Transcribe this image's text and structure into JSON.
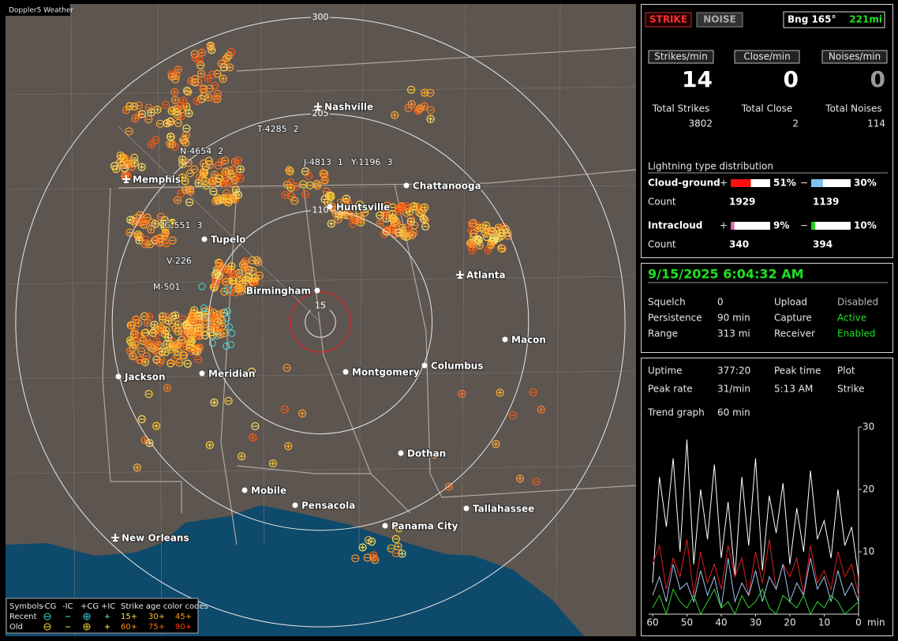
{
  "app_title": "Doppler5 Weather",
  "map": {
    "rings": [
      15,
      110,
      205,
      300
    ],
    "cities": [
      {
        "name": "Nashville",
        "airport": true
      },
      {
        "name": "Memphis",
        "airport": true
      },
      {
        "name": "Chattanooga",
        "airport": false
      },
      {
        "name": "Huntsville",
        "airport": false
      },
      {
        "name": "Tupelo",
        "airport": false
      },
      {
        "name": "Atlanta",
        "airport": true
      },
      {
        "name": "Birmingham",
        "airport": false
      },
      {
        "name": "Macon",
        "airport": false
      },
      {
        "name": "Jackson",
        "airport": false
      },
      {
        "name": "Meridian",
        "airport": false
      },
      {
        "name": "Montgomery",
        "airport": false
      },
      {
        "name": "Columbus",
        "airport": false
      },
      {
        "name": "Dothan",
        "airport": false
      },
      {
        "name": "Mobile",
        "airport": false
      },
      {
        "name": "Pensacola",
        "airport": false
      },
      {
        "name": "Tallahassee",
        "airport": false
      },
      {
        "name": "Panama City",
        "airport": false
      },
      {
        "name": "New Orleans",
        "airport": true
      }
    ],
    "storms": [
      {
        "id": "T-4285",
        "count": "2"
      },
      {
        "id": "N-4654",
        "count": "2"
      },
      {
        "id": "J-4813",
        "count": "1"
      },
      {
        "id": "Y-1196",
        "count": "3"
      },
      {
        "id": "G-551",
        "count": "3"
      },
      {
        "id": "V-226"
      },
      {
        "id": "M-501"
      }
    ]
  },
  "legend": {
    "symbols_label": "Symbols",
    "symbols": [
      "-CG",
      "-IC",
      "+CG",
      "+IC"
    ],
    "age_title": "Strike age color codes",
    "recent_label": "Recent",
    "old_label": "Old",
    "recent_ages": [
      "15+",
      "30+",
      "45+"
    ],
    "old_ages": [
      "60+",
      "75+",
      "90+"
    ]
  },
  "panel": {
    "strike_button": "STRIKE",
    "noise_button": "NOISE",
    "bearing": "Bng 165°",
    "distance": "221mi",
    "rates": [
      {
        "label": "Strikes/min",
        "value": "14"
      },
      {
        "label": "Close/min",
        "value": "0"
      },
      {
        "label": "Noises/min",
        "value": "0"
      }
    ],
    "totals": [
      {
        "label": "Total Strikes",
        "value": "3802"
      },
      {
        "label": "Total Close",
        "value": "2"
      },
      {
        "label": "Total Noises",
        "value": "114"
      }
    ],
    "distribution_title": "Lightning type distribution",
    "count_label": "Count",
    "types": [
      {
        "name": "Cloud-ground",
        "plus": "+",
        "minus": "−",
        "plus_pct": {
          "value": 51,
          "label": "51%"
        },
        "minus_pct": {
          "value": 30,
          "label": "30%"
        },
        "plus_count": "1929",
        "minus_count": "1139"
      },
      {
        "name": "Intracloud",
        "plus": "+",
        "minus": "−",
        "plus_pct": {
          "value": 9,
          "label": "9%"
        },
        "minus_pct": {
          "value": 10,
          "label": "10%"
        },
        "plus_count": "340",
        "minus_count": "394"
      }
    ],
    "datetime": "9/15/2025 6:04:32 AM",
    "status": [
      [
        "Squelch",
        "0",
        "Upload",
        "Disabled"
      ],
      [
        "Persistence",
        "90 min",
        "Capture",
        "Active"
      ],
      [
        "Range",
        "313 mi",
        "Receiver",
        "Enabled"
      ]
    ],
    "stats": [
      [
        "Uptime",
        "377:20",
        "Peak time",
        "Plot"
      ],
      [
        "Peak rate",
        "31/min",
        "5:13 AM",
        "Strike"
      ]
    ],
    "trend_label": "Trend graph",
    "trend_span": "60 min"
  },
  "chart_data": {
    "type": "line",
    "x_unit": "min",
    "x": [
      60,
      58,
      56,
      54,
      52,
      50,
      48,
      46,
      44,
      42,
      40,
      38,
      36,
      34,
      32,
      30,
      28,
      26,
      24,
      22,
      20,
      18,
      16,
      14,
      12,
      10,
      8,
      6,
      4,
      2,
      0
    ],
    "xlim": [
      60,
      0
    ],
    "xticks": [
      60,
      50,
      40,
      30,
      20,
      10,
      0
    ],
    "ylim": [
      0,
      30
    ],
    "yticks": [
      10,
      20,
      30
    ],
    "series": [
      {
        "color": "#ffffff",
        "values": [
          5,
          22,
          14,
          25,
          10,
          28,
          8,
          20,
          12,
          24,
          9,
          18,
          6,
          22,
          11,
          25,
          7,
          19,
          13,
          21,
          8,
          17,
          10,
          23,
          12,
          15,
          9,
          20,
          11,
          14,
          6
        ]
      },
      {
        "color": "#e02020",
        "values": [
          8,
          11,
          4,
          9,
          6,
          12,
          3,
          10,
          5,
          8,
          4,
          11,
          6,
          9,
          3,
          10,
          5,
          12,
          4,
          8,
          6,
          9,
          3,
          11,
          5,
          7,
          4,
          10,
          6,
          8,
          3
        ]
      },
      {
        "color": "#9ec8f0",
        "values": [
          3,
          6,
          2,
          8,
          4,
          5,
          2,
          7,
          3,
          6,
          1,
          9,
          2,
          5,
          3,
          7,
          2,
          6,
          4,
          8,
          2,
          5,
          3,
          9,
          4,
          6,
          2,
          7,
          3,
          5,
          2
        ]
      },
      {
        "color": "#30d030",
        "values": [
          1,
          3,
          0,
          4,
          2,
          1,
          3,
          0,
          2,
          4,
          1,
          2,
          0,
          3,
          1,
          2,
          4,
          1,
          0,
          3,
          2,
          1,
          3,
          0,
          2,
          1,
          3,
          2,
          0,
          1,
          2
        ]
      }
    ]
  }
}
